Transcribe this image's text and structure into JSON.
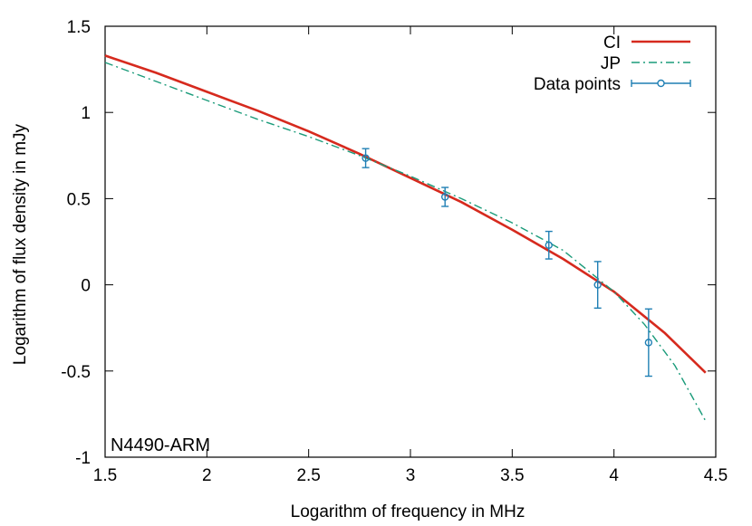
{
  "chart_data": {
    "type": "line",
    "title": "",
    "xlabel": "Logarithm of frequency in MHz",
    "ylabel": "Logarithm of flux density in mJy",
    "xlim": [
      1.5,
      4.5
    ],
    "ylim": [
      -1,
      1.5
    ],
    "x_ticks": [
      1.5,
      2,
      2.5,
      3,
      3.5,
      4,
      4.5
    ],
    "x_tick_labels": [
      "1.5",
      "2",
      "2.5",
      "3",
      "3.5",
      "4",
      "4.5"
    ],
    "y_ticks": [
      -1,
      -0.5,
      0,
      0.5,
      1,
      1.5
    ],
    "y_tick_labels": [
      "-1",
      "-0.5",
      "0",
      "0.5",
      "1",
      "1.5"
    ],
    "grid": false,
    "legend_position": "top-right",
    "annotation": "N4490-ARM",
    "series": [
      {
        "name": "CI",
        "style": "solid",
        "color": "#d62a1e",
        "x": [
          1.5,
          1.75,
          2.0,
          2.25,
          2.5,
          2.75,
          3.0,
          3.25,
          3.5,
          3.75,
          4.0,
          4.25,
          4.45
        ],
        "y": [
          1.33,
          1.23,
          1.12,
          1.01,
          0.89,
          0.76,
          0.62,
          0.48,
          0.32,
          0.15,
          -0.04,
          -0.28,
          -0.51
        ]
      },
      {
        "name": "JP",
        "style": "dash-dot",
        "color": "#1a9b7a",
        "x": [
          1.5,
          1.75,
          2.0,
          2.25,
          2.5,
          2.75,
          3.0,
          3.25,
          3.5,
          3.75,
          4.0,
          4.15,
          4.3,
          4.45
        ],
        "y": [
          1.29,
          1.18,
          1.07,
          0.96,
          0.86,
          0.75,
          0.63,
          0.5,
          0.36,
          0.2,
          -0.04,
          -0.23,
          -0.47,
          -0.79
        ]
      },
      {
        "name": "Data points",
        "style": "points-errorbars",
        "color": "#1f7fb4",
        "x": [
          2.78,
          3.17,
          3.68,
          3.92,
          4.17
        ],
        "y": [
          0.735,
          0.51,
          0.23,
          0.0,
          -0.335
        ],
        "yerr": [
          0.055,
          0.055,
          0.08,
          0.135,
          0.195
        ]
      }
    ]
  }
}
